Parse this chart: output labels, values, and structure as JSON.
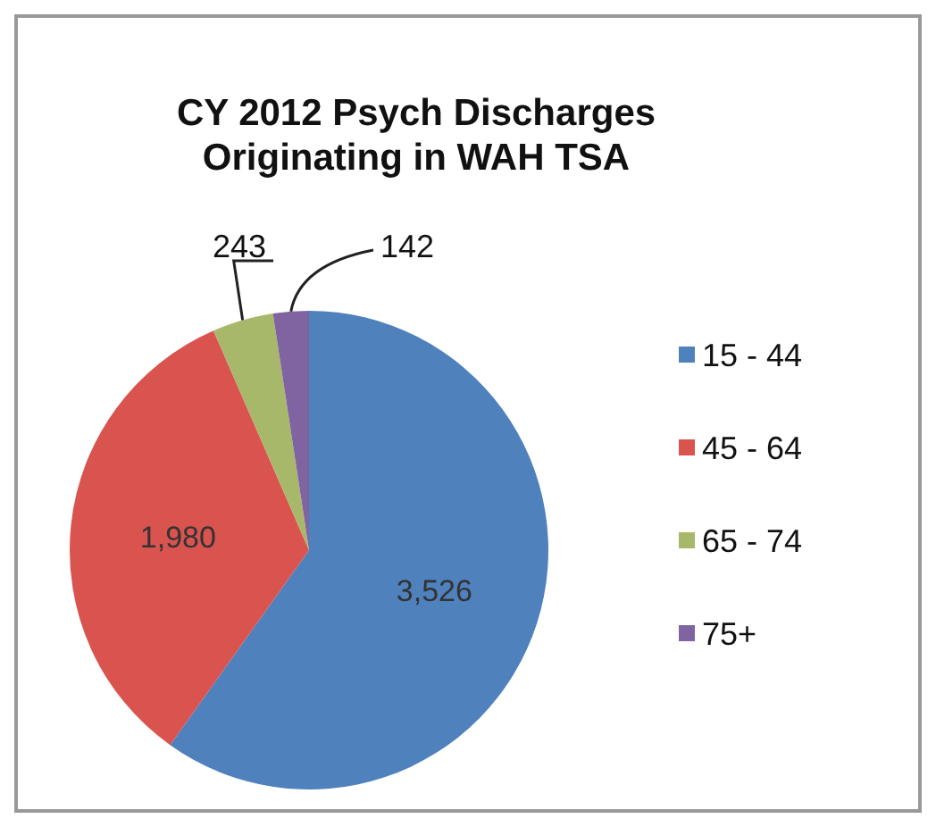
{
  "chart_data": {
    "type": "pie",
    "title": "CY 2012 Psych Discharges\nOriginating in WAH TSA",
    "categories": [
      "15 - 44",
      "45 - 64",
      "65 - 74",
      "75+"
    ],
    "values": [
      3526,
      1980,
      243,
      142
    ],
    "colors": [
      "#4f81bd",
      "#d9534f",
      "#a8b86a",
      "#8064a2"
    ],
    "value_labels": [
      "3,526",
      "1,980",
      "243",
      "142"
    ],
    "legend": "right"
  }
}
